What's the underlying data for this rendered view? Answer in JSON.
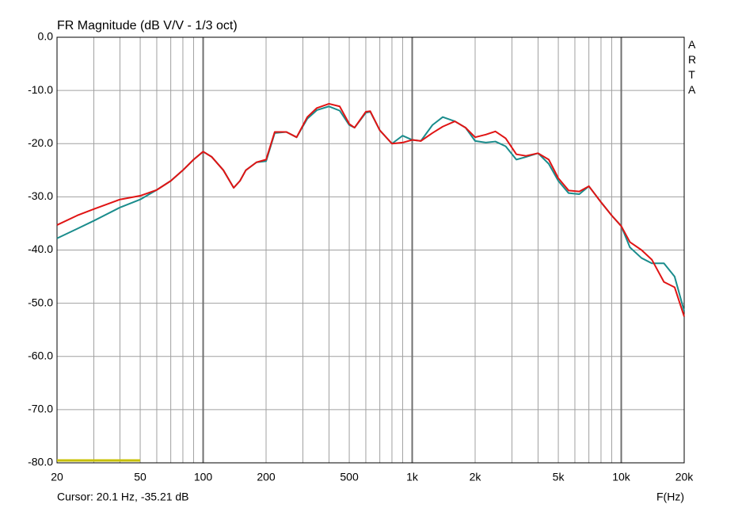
{
  "chart_data": {
    "type": "line",
    "title": "FR Magnitude (dB V/V - 1/3 oct)",
    "side_label": "ARTA",
    "cursor_text": "Cursor: 20.1 Hz, -35.21 dB",
    "x_label": "F(Hz)",
    "xscale": "log",
    "x": [
      20,
      25,
      30,
      40,
      50,
      60,
      70,
      80,
      90,
      100,
      110,
      125,
      140,
      150,
      160,
      180,
      200,
      220,
      250,
      280,
      315,
      350,
      400,
      450,
      500,
      530,
      600,
      630,
      700,
      800,
      900,
      1000,
      1100,
      1250,
      1400,
      1600,
      1800,
      2000,
      2250,
      2500,
      2800,
      3150,
      3500,
      4000,
      4500,
      5000,
      5600,
      6300,
      7000,
      8000,
      9000,
      10000,
      11000,
      12500,
      14000,
      16000,
      18000,
      20000
    ],
    "series": [
      {
        "color": "#1a8c8c",
        "values": [
          -37.8,
          -36,
          -34.5,
          -32,
          -30.5,
          -28.7,
          -27,
          -25,
          -23,
          -21.5,
          -22.5,
          -25,
          -28.3,
          -27,
          -25,
          -23.5,
          -23.3,
          -18,
          -17.8,
          -18.8,
          -15.3,
          -13.7,
          -13,
          -13.8,
          -16.5,
          -17,
          -14.2,
          -14,
          -17.5,
          -20,
          -18.5,
          -19.3,
          -19.5,
          -16.5,
          -15,
          -15.8,
          -17,
          -19.5,
          -19.8,
          -19.6,
          -20.5,
          -23,
          -22.5,
          -21.8,
          -23.8,
          -27,
          -29.3,
          -29.5,
          -28,
          -31,
          -33.5,
          -35.5,
          -39.5,
          -41.5,
          -42.5,
          -42.5,
          -45,
          -51.5
        ]
      },
      {
        "color": "#e01414",
        "values": [
          -35.3,
          -33.5,
          -32.3,
          -30.5,
          -29.8,
          -28.7,
          -27,
          -25,
          -23,
          -21.5,
          -22.5,
          -25,
          -28.3,
          -27,
          -25,
          -23.5,
          -23,
          -17.8,
          -17.8,
          -18.8,
          -15,
          -13.3,
          -12.5,
          -13,
          -16.3,
          -17,
          -14,
          -13.9,
          -17.5,
          -20,
          -19.8,
          -19.3,
          -19.5,
          -18,
          -16.8,
          -15.8,
          -17,
          -18.8,
          -18.3,
          -17.7,
          -19,
          -22,
          -22.3,
          -21.8,
          -23,
          -26.5,
          -28.8,
          -29,
          -28,
          -31,
          -33.5,
          -35.5,
          -38.5,
          -40,
          -41.8,
          -46,
          -47,
          -52.5
        ]
      }
    ],
    "xlim": [
      20,
      20000
    ],
    "ylim": [
      -80,
      0
    ],
    "xticks": [
      20,
      50,
      100,
      200,
      500,
      {
        "value": 1000,
        "label": "1k"
      },
      {
        "value": 2000,
        "label": "2k"
      },
      {
        "value": 5000,
        "label": "5k"
      },
      {
        "value": 10000,
        "label": "10k"
      },
      {
        "value": 20000,
        "label": "20k"
      }
    ],
    "xgrid": [
      30,
      40,
      60,
      70,
      80,
      90,
      300,
      400,
      600,
      700,
      800,
      900,
      3000,
      4000,
      6000,
      7000,
      8000,
      9000
    ],
    "yticks": [
      {
        "value": 0,
        "label": "0.0"
      },
      {
        "value": -10,
        "label": "-10.0"
      },
      {
        "value": -20,
        "label": "-20.0"
      },
      {
        "value": -30,
        "label": "-30.0"
      },
      {
        "value": -40,
        "label": "-40.0"
      },
      {
        "value": -50,
        "label": "-50.0"
      },
      {
        "value": -60,
        "label": "-60.0"
      },
      {
        "value": -70,
        "label": "-70.0"
      },
      {
        "value": -80,
        "label": "-80.0"
      }
    ],
    "highlight": {
      "x": [
        20,
        50
      ],
      "color": "#c8c000"
    },
    "grid": true
  }
}
